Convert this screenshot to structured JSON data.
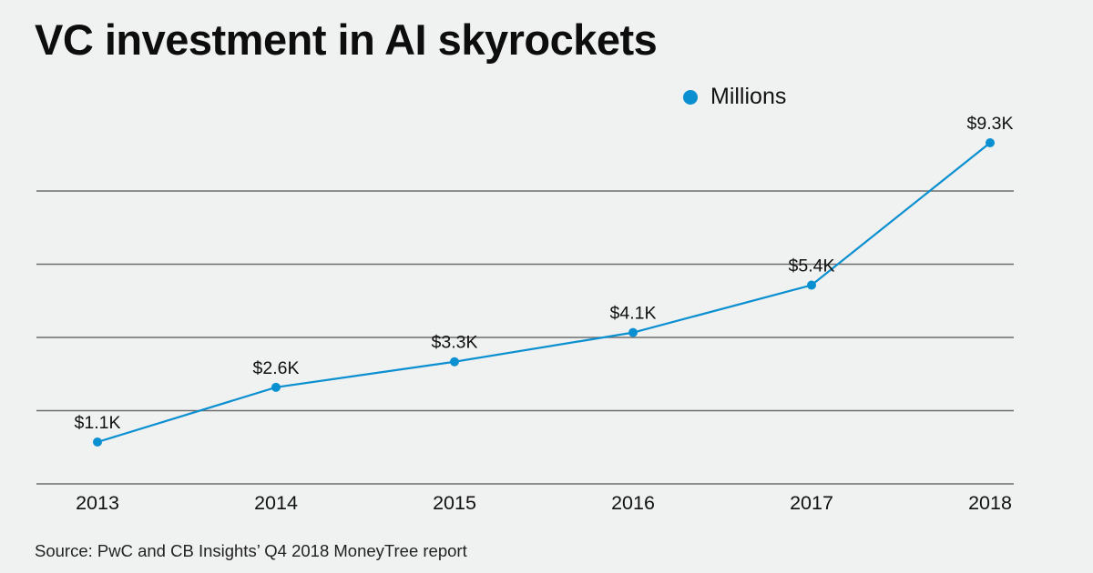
{
  "chart_data": {
    "type": "line",
    "title": "VC investment in AI skyrockets",
    "xlabel": "",
    "ylabel": "",
    "categories": [
      "2013",
      "2014",
      "2015",
      "2016",
      "2017",
      "2018"
    ],
    "series": [
      {
        "name": "Millions",
        "color": "#0a8fd0",
        "values": [
          1100,
          2600,
          3300,
          4100,
          5400,
          9300
        ],
        "labels": [
          "$1.1K",
          "$2.6K",
          "$3.3K",
          "$4.1K",
          "$5.4K",
          "$9.3K"
        ]
      }
    ],
    "gridlines": 5,
    "grid": true,
    "legend": {
      "position": "top-right",
      "entries": [
        "Millions"
      ]
    },
    "source": "Source: PwC and CB Insights’ Q4 2018 MoneyTree report"
  }
}
